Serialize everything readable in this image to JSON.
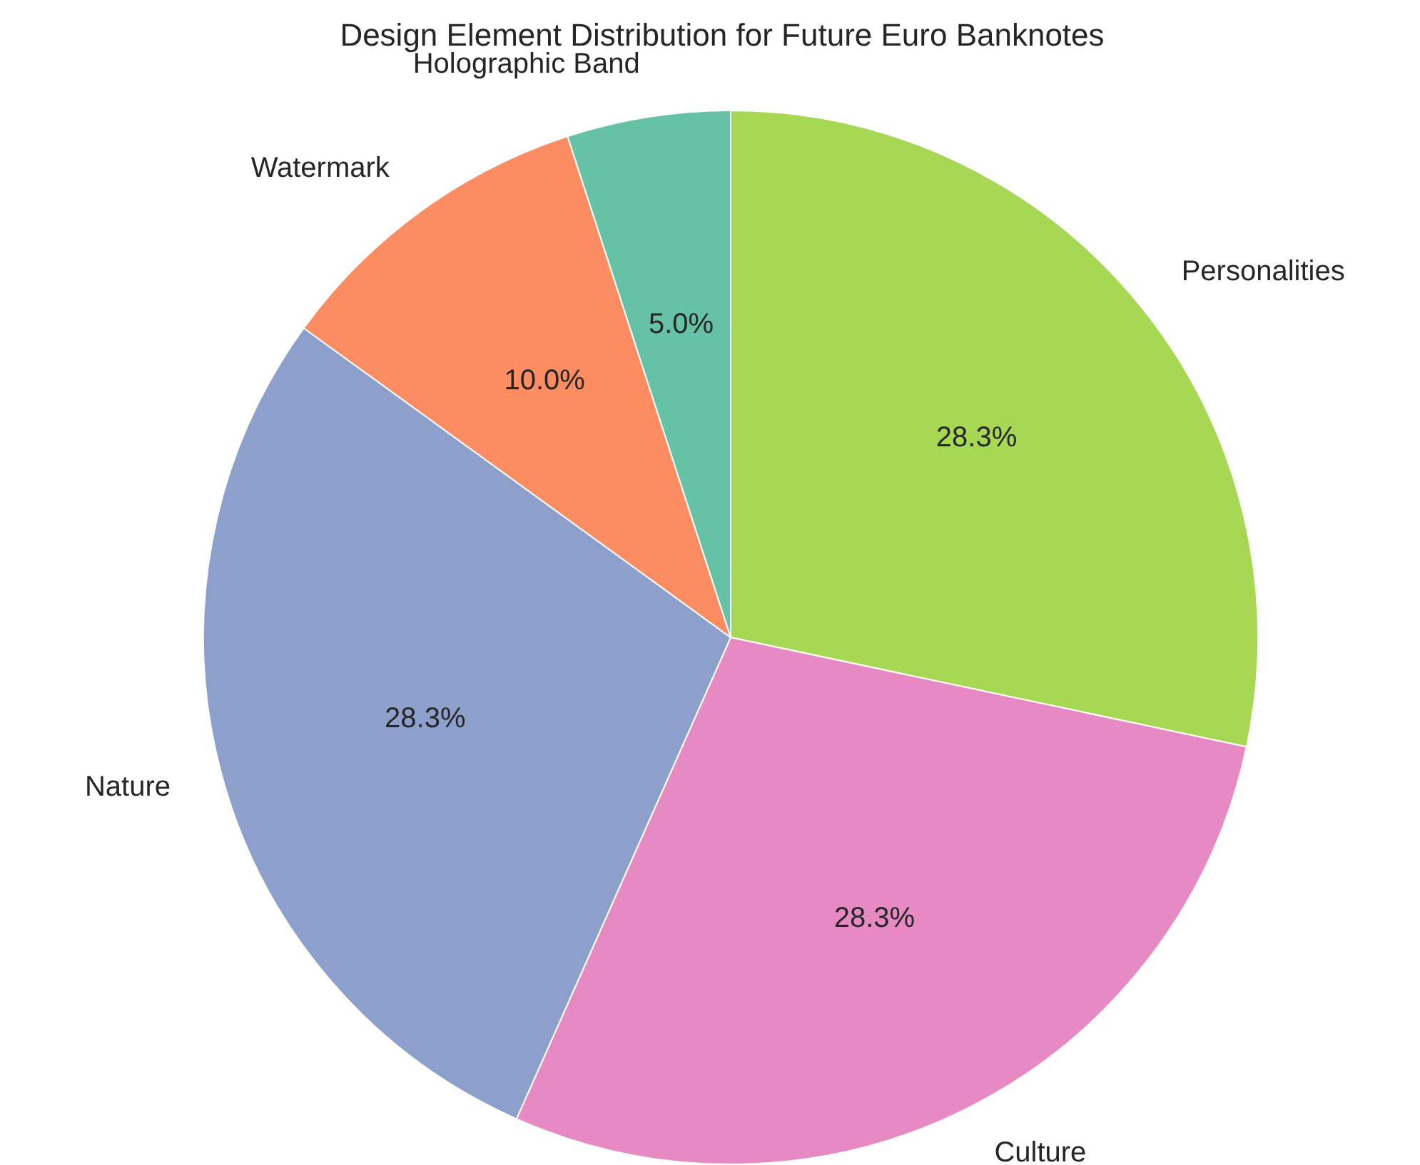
{
  "chart_data": {
    "type": "pie",
    "title": "Design Element Distribution for Future Euro Banknotes",
    "categories": [
      "Personalities",
      "Culture",
      "Nature",
      "Watermark",
      "Holographic Band"
    ],
    "values": [
      28.3,
      28.3,
      28.3,
      10,
      5
    ],
    "colors": [
      "#a6d854",
      "#e78ac3",
      "#8da0cb",
      "#fc8d62",
      "#66c2a5"
    ],
    "value_labels": [
      "28.3%",
      "28.3%",
      "28.3%",
      "10.0%",
      "5.0%"
    ],
    "legend": false
  }
}
